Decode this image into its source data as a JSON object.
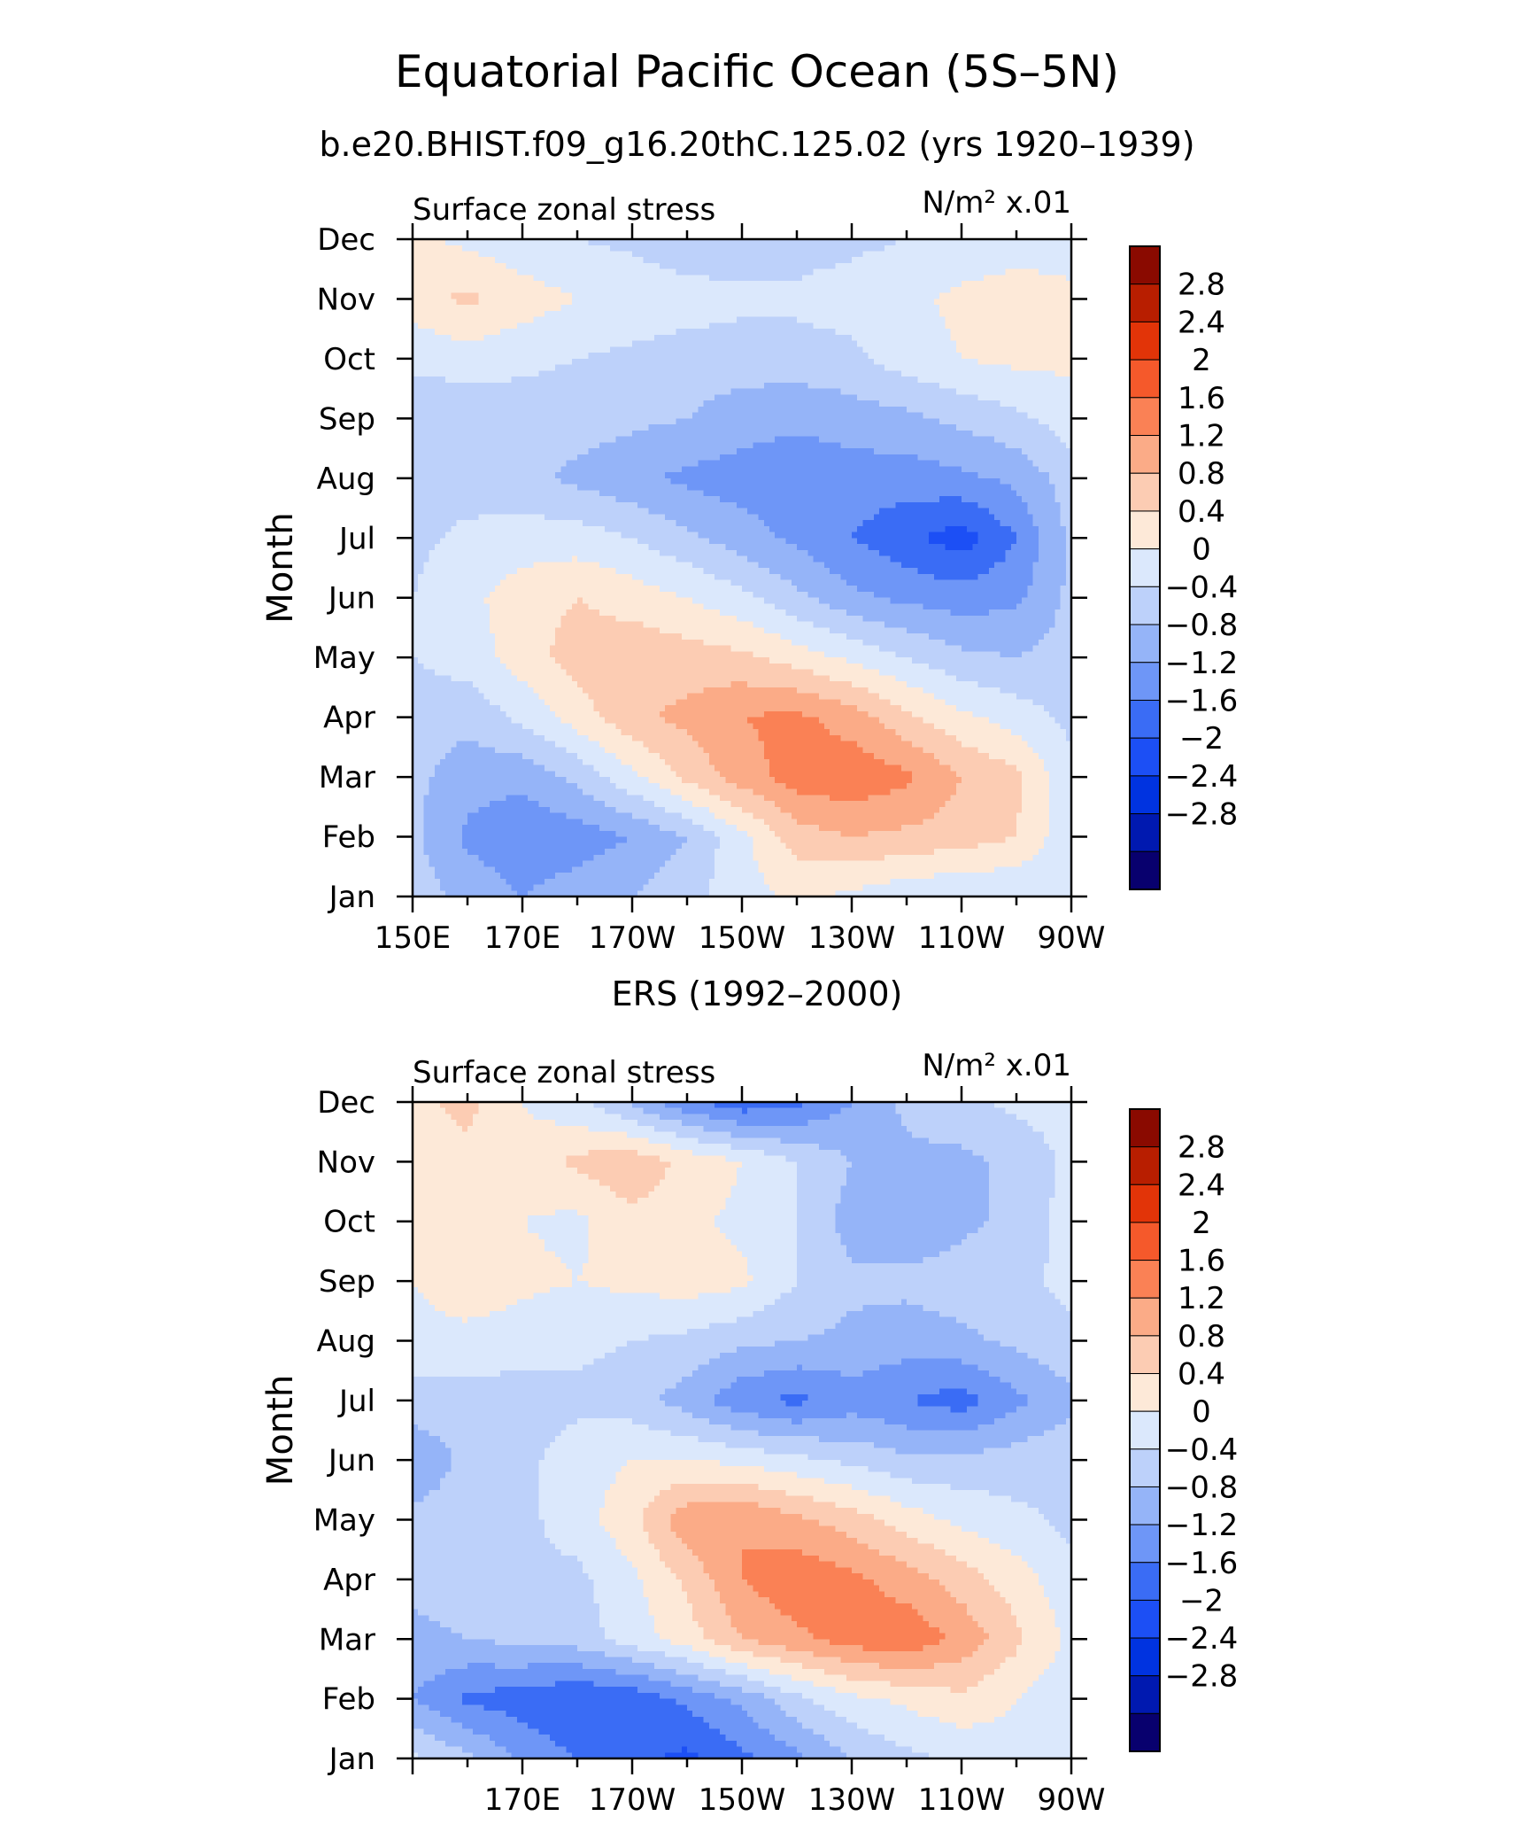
{
  "figure": {
    "title": "Equatorial Pacific Ocean (5S–5N)",
    "subtitle": "b.e20.BHIST.f09_g16.20thC.125.02 (yrs 1920–1939)"
  },
  "colorbar": {
    "labels": [
      "2.8",
      "2.4",
      "2",
      "1.6",
      "1.2",
      "0.8",
      "0.4",
      "0",
      "−0.4",
      "−0.8",
      "−1.2",
      "−1.6",
      "−2",
      "−2.4",
      "−2.8"
    ],
    "colors": [
      "#08006e",
      "#0019b0",
      "#0033e0",
      "#1c4ff5",
      "#3a6cf5",
      "#6e96f7",
      "#95b4f8",
      "#bdd1fa",
      "#dbe8fc",
      "#fde9d8",
      "#fcccb3",
      "#fbab87",
      "#fa8155",
      "#f5592b",
      "#e23408",
      "#b81e00",
      "#8a0a00"
    ]
  },
  "chart_data": [
    {
      "type": "heatmap",
      "panel_title": "",
      "left_label": "Surface zonal stress",
      "right_label": "N/m² x.01",
      "ylabel": "Month",
      "xlabel": "",
      "x_ticks": [
        "150E",
        "170E",
        "170W",
        "150W",
        "130W",
        "110W",
        "90W"
      ],
      "y_ticks": [
        "Jan",
        "Feb",
        "Mar",
        "Apr",
        "May",
        "Jun",
        "Jul",
        "Aug",
        "Sep",
        "Oct",
        "Nov",
        "Dec"
      ],
      "xlim": [
        150,
        270
      ],
      "levels": [
        -2.8,
        -2.4,
        -2.0,
        -1.6,
        -1.2,
        -0.8,
        -0.4,
        0,
        0.4,
        0.8,
        1.2,
        1.6,
        2.0,
        2.4,
        2.8
      ],
      "lon": [
        150,
        160,
        170,
        180,
        190,
        200,
        210,
        220,
        230,
        240,
        250,
        260,
        270
      ],
      "values": [
        [
          -0.2,
          -0.5,
          -0.8,
          -0.6,
          -0.4,
          -0.1,
          0.2,
          0.5,
          0.3,
          0.1,
          0.0,
          0.0,
          0.0
        ],
        [
          -0.3,
          -0.9,
          -1.1,
          -1.0,
          -0.8,
          -0.4,
          0.3,
          1.0,
          1.2,
          1.1,
          1.0,
          0.8,
          0.1
        ],
        [
          -0.3,
          -0.6,
          -0.7,
          -0.3,
          0.3,
          0.9,
          1.4,
          1.8,
          1.9,
          1.7,
          1.2,
          0.9,
          0.1
        ],
        [
          -0.2,
          -0.3,
          0.1,
          0.6,
          1.1,
          1.3,
          1.6,
          1.7,
          1.4,
          0.9,
          0.5,
          0.2,
          -0.1
        ],
        [
          0.0,
          0.2,
          0.6,
          1.0,
          1.1,
          1.0,
          0.9,
          0.6,
          0.3,
          0.0,
          -0.3,
          -0.4,
          -0.2
        ],
        [
          0.0,
          0.3,
          0.6,
          0.8,
          0.6,
          0.4,
          0.1,
          -0.3,
          -0.7,
          -0.9,
          -1.0,
          -0.9,
          -0.3
        ],
        [
          -0.1,
          0.1,
          0.2,
          0.2,
          0.0,
          -0.3,
          -0.6,
          -0.9,
          -1.2,
          -1.5,
          -1.8,
          -1.2,
          -0.3
        ],
        [
          -0.2,
          -0.2,
          -0.3,
          -0.5,
          -0.7,
          -0.9,
          -1.0,
          -1.1,
          -1.0,
          -1.0,
          -0.9,
          -0.7,
          -0.2
        ],
        [
          -0.3,
          -0.3,
          -0.2,
          -0.2,
          -0.3,
          -0.4,
          -0.6,
          -0.7,
          -0.6,
          -0.5,
          -0.3,
          -0.1,
          0.2
        ],
        [
          0.1,
          0.2,
          0.1,
          0.0,
          -0.1,
          -0.2,
          -0.2,
          -0.2,
          -0.1,
          0.2,
          0.4,
          0.5,
          0.5
        ],
        [
          0.6,
          0.9,
          0.6,
          0.4,
          0.3,
          0.2,
          0.1,
          0.1,
          0.2,
          0.3,
          0.5,
          0.6,
          0.5
        ],
        [
          0.5,
          0.3,
          0.1,
          0.0,
          -0.1,
          -0.3,
          -0.3,
          -0.2,
          -0.1,
          0.0,
          0.1,
          0.2,
          0.2
        ]
      ]
    },
    {
      "type": "heatmap",
      "panel_title": "ERS (1992–2000)",
      "left_label": "Surface zonal stress",
      "right_label": "N/m² x.01",
      "ylabel": "Month",
      "xlabel": "",
      "x_ticks": [
        "170E",
        "170W",
        "150W",
        "130W",
        "110W",
        "90W"
      ],
      "y_ticks": [
        "Jan",
        "Feb",
        "Mar",
        "Apr",
        "May",
        "Jun",
        "Jul",
        "Aug",
        "Sep",
        "Oct",
        "Nov",
        "Dec"
      ],
      "xlim": [
        150,
        270
      ],
      "levels": [
        -2.8,
        -2.4,
        -2.0,
        -1.6,
        -1.2,
        -0.8,
        -0.4,
        0,
        0.4,
        0.8,
        1.2,
        1.6,
        2.0,
        2.4,
        2.8
      ],
      "lon": [
        150,
        160,
        170,
        180,
        190,
        200,
        210,
        220,
        230,
        240,
        250,
        260,
        270
      ],
      "values": [
        [
          0.1,
          -0.3,
          -0.9,
          -1.2,
          -1.5,
          -1.7,
          -1.3,
          -0.9,
          -0.4,
          -0.1,
          0.1,
          0.2,
          0.2
        ],
        [
          -0.8,
          -1.3,
          -1.4,
          -1.6,
          -1.5,
          -1.1,
          -0.7,
          -0.1,
          0.3,
          0.5,
          0.7,
          0.4,
          0.1
        ],
        [
          -0.5,
          -0.4,
          -0.3,
          -0.2,
          0.2,
          0.6,
          1.2,
          1.5,
          1.8,
          1.9,
          1.5,
          0.9,
          0.3
        ],
        [
          -0.3,
          -0.2,
          -0.1,
          -0.1,
          0.3,
          0.9,
          1.6,
          1.9,
          1.7,
          1.4,
          1.0,
          0.6,
          0.1
        ],
        [
          -0.3,
          -0.2,
          -0.1,
          0.2,
          0.7,
          1.5,
          1.6,
          1.3,
          1.0,
          0.6,
          0.3,
          0.1,
          -0.1
        ],
        [
          -0.7,
          -0.3,
          -0.1,
          0.2,
          0.4,
          0.4,
          0.3,
          0.1,
          -0.1,
          -0.3,
          -0.3,
          -0.2,
          -0.1
        ],
        [
          -0.2,
          -0.2,
          -0.2,
          -0.1,
          -0.2,
          -0.6,
          -1.1,
          -1.3,
          -1.0,
          -1.2,
          -1.4,
          -0.9,
          -0.5
        ],
        [
          0.3,
          0.3,
          0.2,
          0.1,
          0.0,
          -0.1,
          -0.3,
          -0.4,
          -0.5,
          -0.6,
          -0.5,
          -0.3,
          -0.1
        ],
        [
          0.4,
          0.6,
          0.5,
          0.4,
          0.5,
          0.6,
          0.5,
          0.0,
          -0.3,
          -0.3,
          -0.2,
          -0.1,
          0.1
        ],
        [
          0.5,
          0.6,
          0.4,
          0.3,
          0.7,
          0.5,
          0.3,
          0.0,
          -0.6,
          -0.7,
          -0.5,
          -0.3,
          0.2
        ],
        [
          0.6,
          0.7,
          0.5,
          0.9,
          1.1,
          0.7,
          0.4,
          0.0,
          -0.4,
          -0.5,
          -0.5,
          -0.3,
          0.1
        ],
        [
          0.7,
          0.9,
          0.4,
          0.1,
          -0.5,
          -1.1,
          -1.5,
          -1.3,
          -0.8,
          -0.3,
          -0.1,
          0.1,
          0.2
        ]
      ]
    }
  ]
}
